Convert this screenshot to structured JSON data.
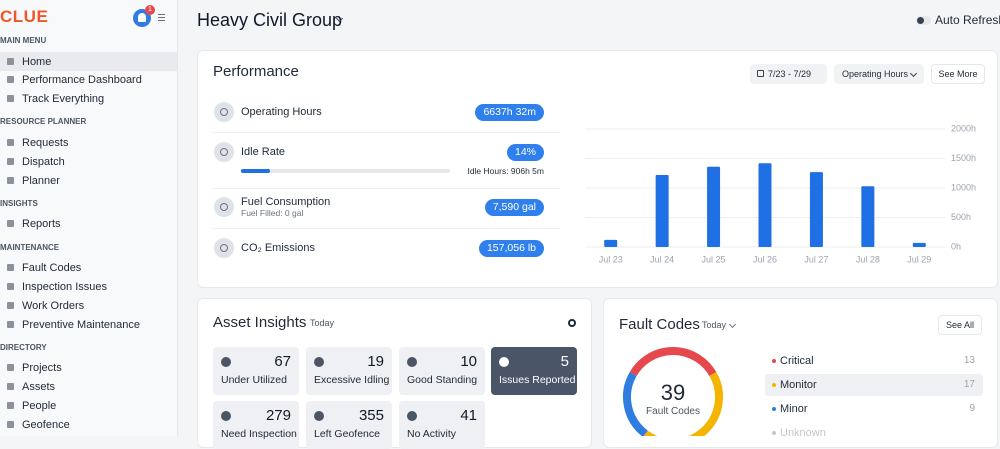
{
  "sidebar": {
    "logo": "CLUE",
    "notification_count": 1,
    "sections": [
      {
        "title": "MAIN MENU",
        "items": [
          "Home",
          "Performance Dashboard",
          "Track Everything"
        ]
      },
      {
        "title": "RESOURCE PLANNER",
        "items": [
          "Requests",
          "Dispatch",
          "Planner"
        ]
      },
      {
        "title": "INSIGHTS",
        "items": [
          "Reports"
        ]
      },
      {
        "title": "MAINTENANCE",
        "items": [
          "Fault Codes",
          "Inspection Issues",
          "Work Orders",
          "Preventive Maintenance"
        ]
      },
      {
        "title": "DIRECTORY",
        "items": [
          "Projects",
          "Assets",
          "People",
          "Geofence"
        ]
      }
    ]
  },
  "header": {
    "title": "Heavy Civil Group",
    "auto_refresh": "Auto Refresh"
  },
  "performance": {
    "title": "Performance",
    "date_range": "7/23 - 7/29",
    "metric_selector": "Operating Hours",
    "see_more": "See More",
    "metrics": [
      {
        "label": "Operating Hours",
        "value": "6637h 32m"
      },
      {
        "label": "Idle Rate",
        "value": 14,
        "value_label": "14%",
        "detail": "Idle Hours: 906h 5m"
      },
      {
        "label": "Fuel Consumption",
        "sublabel": "Fuel Filled: 0 gal",
        "value": "7,590 gal"
      },
      {
        "label": "CO₂ Emissions",
        "value": "157,056 lb"
      }
    ]
  },
  "chart_data": {
    "type": "bar",
    "categories": [
      "Jul 23",
      "Jul 24",
      "Jul 25",
      "Jul 26",
      "Jul 27",
      "Jul 28",
      "Jul 29"
    ],
    "values": [
      120,
      1220,
      1360,
      1420,
      1270,
      1030,
      70
    ],
    "color": "#1f6fe5",
    "ylim": [
      0,
      2000
    ],
    "yticks": [
      {
        "value": 0,
        "label": "0h"
      },
      {
        "value": 500,
        "label": "500h"
      },
      {
        "value": 1000,
        "label": "1000h"
      },
      {
        "value": 1500,
        "label": "1500h"
      },
      {
        "value": 2000,
        "label": "2000h"
      }
    ],
    "grid": true,
    "y_axis_side": "right"
  },
  "asset_insights": {
    "title": "Asset Insights",
    "period": "Today",
    "tiles": [
      {
        "value": 67,
        "label": "Under Utilized"
      },
      {
        "value": 19,
        "label": "Excessive Idling"
      },
      {
        "value": 10,
        "label": "Good Standing"
      },
      {
        "value": 5,
        "label": "Issues Reported"
      },
      {
        "value": 279,
        "label": "Need Inspection"
      },
      {
        "value": 355,
        "label": "Left Geofence"
      },
      {
        "value": 41,
        "label": "No Activity"
      }
    ]
  },
  "fault_codes": {
    "title": "Fault Codes",
    "period": "Today",
    "see_all": "See All",
    "total": 39,
    "total_label": "Fault Codes",
    "categories": [
      {
        "name": "Critical",
        "value": 13,
        "color": "#e5484d"
      },
      {
        "name": "Monitor",
        "value": 17,
        "color": "#f5b400"
      },
      {
        "name": "Minor",
        "value": 9,
        "color": "#2f7de1"
      },
      {
        "name": "Unknown",
        "color": "#c3c7ce"
      }
    ]
  }
}
